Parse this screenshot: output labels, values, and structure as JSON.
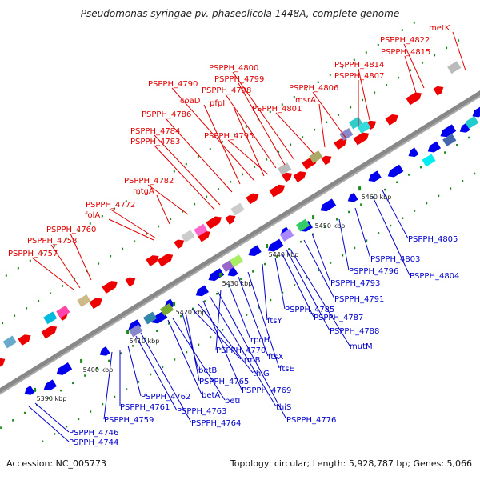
{
  "title": "Pseudomonas syringae pv. phaseolicola 1448A, complete genome",
  "footer": {
    "accession": "Accession: NC_005773",
    "summary": "Topology: circular; Length: 5,928,787 bp; Genes: 5,066"
  },
  "colors": {
    "forward": "#ee0000",
    "reverse": "#0000ee",
    "backbone": "#888888",
    "dots": "#1a8a1a"
  },
  "ticks": [
    {
      "label": "5390 kbp"
    },
    {
      "label": "5400 kbp"
    },
    {
      "label": "5410 kbp"
    },
    {
      "label": "5420 kbp"
    },
    {
      "label": "5430 kbp"
    },
    {
      "label": "5440 kbp"
    },
    {
      "label": "5450 kbp"
    },
    {
      "label": "5460 kbp"
    }
  ],
  "forward_labels": [
    "PSPPH_4757",
    "PSPPH_4758",
    "PSPPH_4760",
    "folA",
    "PSPPH_4772",
    "mtgA",
    "PSPPH_4782",
    "PSPPH_4783",
    "PSPPH_4784",
    "PSPPH_4786",
    "coaD",
    "PSPPH_4790",
    "pfpI",
    "PSPPH_4795",
    "PSPPH_4798",
    "PSPPH_4799",
    "PSPPH_4800",
    "PSPPH_4801",
    "msrA",
    "PSPPH_4806",
    "PSPPH_4807",
    "PSPPH_4814",
    "PSPPH_4815",
    "PSPPH_4822",
    "metK"
  ],
  "reverse_labels": [
    "PSPPH_4744",
    "PSPPH_4746",
    "PSPPH_4759",
    "PSPPH_4761",
    "PSPPH_4762",
    "PSPPH_4763",
    "PSPPH_4764",
    "betA",
    "betI",
    "betB",
    "PSPPH_4765",
    "trmB",
    "thiG",
    "PSPPH_4769",
    "thiS",
    "PSPPH_4776",
    "PSPPH_4770",
    "rpoH",
    "ftsX",
    "ftsE",
    "ftsY",
    "PSPPH_4785",
    "PSPPH_4787",
    "PSPPH_4788",
    "mutM",
    "PSPPH_4791",
    "PSPPH_4793",
    "PSPPH_4796",
    "PSPPH_4803",
    "PSPPH_4804",
    "PSPPH_4805"
  ]
}
